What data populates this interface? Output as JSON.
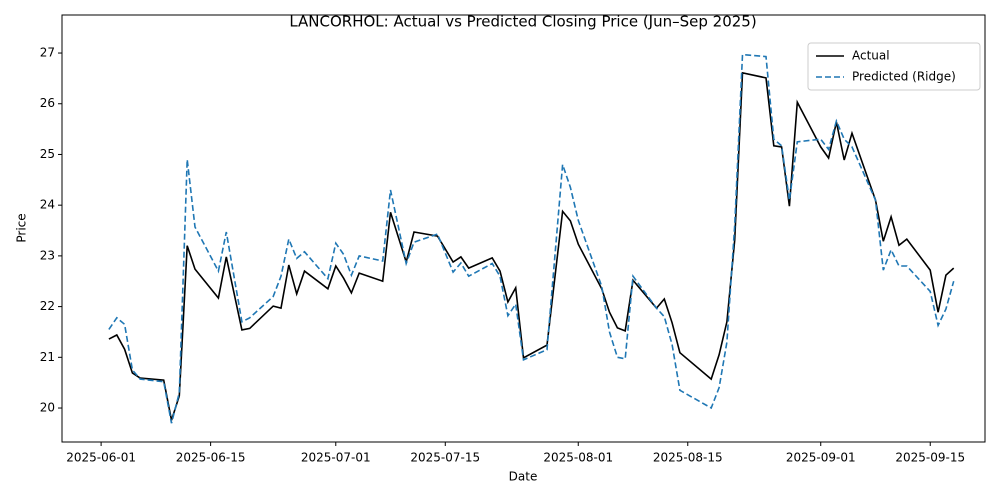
{
  "chart_data": {
    "type": "line",
    "title": "LANCORHOL: Actual vs Predicted Closing Price (Jun–Sep 2025)",
    "x_label": "Date",
    "y_label": "Price",
    "x": [
      "2025-06-02",
      "2025-06-03",
      "2025-06-04",
      "2025-06-05",
      "2025-06-06",
      "2025-06-09",
      "2025-06-10",
      "2025-06-11",
      "2025-06-12",
      "2025-06-13",
      "2025-06-16",
      "2025-06-17",
      "2025-06-19",
      "2025-06-20",
      "2025-06-23",
      "2025-06-24",
      "2025-06-25",
      "2025-06-26",
      "2025-06-27",
      "2025-06-30",
      "2025-07-01",
      "2025-07-02",
      "2025-07-03",
      "2025-07-04",
      "2025-07-07",
      "2025-07-08",
      "2025-07-10",
      "2025-07-11",
      "2025-07-14",
      "2025-07-16",
      "2025-07-17",
      "2025-07-18",
      "2025-07-21",
      "2025-07-22",
      "2025-07-23",
      "2025-07-24",
      "2025-07-25",
      "2025-07-28",
      "2025-07-30",
      "2025-07-31",
      "2025-08-01",
      "2025-08-04",
      "2025-08-05",
      "2025-08-06",
      "2025-08-07",
      "2025-08-08",
      "2025-08-11",
      "2025-08-12",
      "2025-08-13",
      "2025-08-14",
      "2025-08-18",
      "2025-08-19",
      "2025-08-20",
      "2025-08-21",
      "2025-08-22",
      "2025-08-25",
      "2025-08-26",
      "2025-08-27",
      "2025-08-28",
      "2025-08-29",
      "2025-09-01",
      "2025-09-02",
      "2025-09-03",
      "2025-09-04",
      "2025-09-05",
      "2025-09-08",
      "2025-09-09",
      "2025-09-10",
      "2025-09-11",
      "2025-09-12",
      "2025-09-15",
      "2025-09-16",
      "2025-09-17",
      "2025-09-18"
    ],
    "series": [
      {
        "name": "Actual",
        "color": "#000000",
        "dash": "solid",
        "values": [
          21.36,
          21.44,
          21.16,
          20.69,
          20.59,
          20.55,
          19.76,
          20.24,
          23.2,
          22.74,
          22.17,
          22.98,
          21.54,
          21.57,
          22.01,
          21.97,
          22.82,
          22.25,
          22.7,
          22.35,
          22.8,
          22.56,
          22.27,
          22.66,
          22.5,
          23.86,
          22.88,
          23.47,
          23.39,
          22.88,
          22.98,
          22.76,
          22.96,
          22.7,
          22.09,
          22.37,
          20.99,
          21.24,
          23.88,
          23.69,
          23.23,
          22.35,
          21.89,
          21.58,
          21.52,
          22.52,
          21.97,
          22.15,
          21.68,
          21.09,
          20.57,
          21.05,
          21.7,
          23.31,
          26.61,
          26.51,
          25.17,
          25.15,
          23.98,
          26.03,
          25.15,
          24.93,
          25.64,
          24.89,
          25.42,
          24.1,
          23.29,
          23.77,
          23.21,
          23.33,
          22.72,
          21.89,
          22.62,
          22.76
        ]
      },
      {
        "name": "Predicted (Ridge)",
        "color": "#1f77b4",
        "dash": "dashed",
        "values": [
          21.55,
          21.78,
          21.65,
          20.75,
          20.57,
          20.52,
          19.7,
          20.3,
          24.9,
          23.57,
          22.7,
          23.47,
          21.7,
          21.78,
          22.2,
          22.6,
          23.33,
          22.95,
          23.08,
          22.55,
          23.25,
          23.03,
          22.62,
          23.0,
          22.9,
          24.3,
          22.85,
          23.27,
          23.43,
          22.68,
          22.86,
          22.6,
          22.85,
          22.6,
          21.82,
          22.05,
          20.95,
          21.15,
          24.8,
          24.35,
          23.7,
          22.4,
          21.5,
          21.0,
          20.97,
          22.6,
          21.97,
          21.8,
          21.25,
          20.35,
          20.0,
          20.4,
          21.3,
          23.6,
          26.97,
          26.93,
          25.3,
          25.17,
          24.1,
          25.25,
          25.3,
          25.1,
          25.66,
          25.3,
          25.15,
          24.1,
          22.72,
          23.12,
          22.8,
          22.8,
          22.3,
          21.63,
          21.95,
          22.5
        ]
      }
    ],
    "xlim": [
      "2025-05-27",
      "2025-09-22"
    ],
    "xticks": [
      "2025-06-01",
      "2025-06-15",
      "2025-07-01",
      "2025-07-15",
      "2025-08-01",
      "2025-08-15",
      "2025-09-01",
      "2025-09-15"
    ],
    "ylim": [
      19.33,
      27.75
    ],
    "yticks": [
      20,
      21,
      22,
      23,
      24,
      25,
      26,
      27
    ],
    "grid": false,
    "legend": "upper right"
  }
}
